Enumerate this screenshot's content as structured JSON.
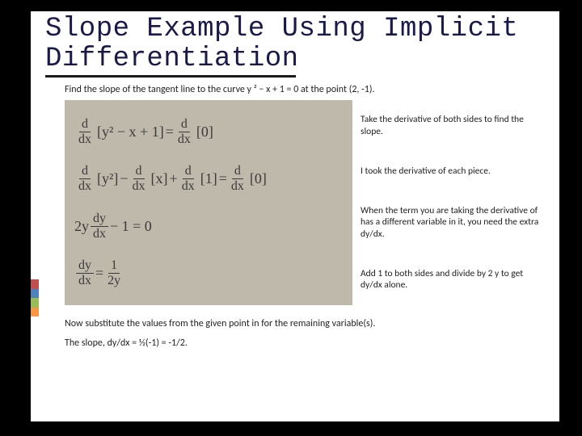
{
  "title_line1": "Slope Example Using Implicit",
  "title_line2": "Differentiation",
  "problem": "Find the slope of the tangent line to the curve y ² − x + 1 = 0 at the point (2, -1).",
  "equations": {
    "eq1_lhs_op": "d",
    "eq1_lhs_var": "dx",
    "eq1_lhs_body": "[y² − x + 1]",
    "eq1_eq": " = ",
    "eq1_rhs_op": "d",
    "eq1_rhs_var": "dx",
    "eq1_rhs_body": "[0]",
    "eq2_a_op": "d",
    "eq2_a_var": "dx",
    "eq2_a_body": "[y²]",
    "eq2_minus": " − ",
    "eq2_b_op": "d",
    "eq2_b_var": "dx",
    "eq2_b_body": "[x]",
    "eq2_plus": " + ",
    "eq2_c_op": "d",
    "eq2_c_var": "dx",
    "eq2_c_body": "[1]",
    "eq2_eq": " = ",
    "eq2_r_op": "d",
    "eq2_r_var": "dx",
    "eq2_r_body": "[0]",
    "eq3_coef": "2y",
    "eq3_num": "dy",
    "eq3_den": "dx",
    "eq3_tail": " − 1 = 0",
    "eq4_num": "dy",
    "eq4_den": "dx",
    "eq4_eq": " = ",
    "eq4_rnum": "1",
    "eq4_rden": "2y"
  },
  "annotations": {
    "a1": "Take the derivative of both sides to find the slope.",
    "a2": "I took the derivative of each piece.",
    "a3": "When the term you are taking the derivative of has a different variable in it, you need the extra dy/dx.",
    "a4": "Add 1 to both sides and divide by 2 y to get dy/dx alone."
  },
  "footer1": "Now substitute the values from the given point in for the remaining variable(s).",
  "footer2": "The slope, dy/dx = ½(-1) = -1/2.",
  "colors": {
    "slide_bg": "#000000",
    "content_bg": "#ffffff",
    "title_color": "#1a1a4a",
    "math_bg": "#bfb9ac",
    "accent1": "#c0504d",
    "accent2": "#4f81bd",
    "accent3": "#9bbb59",
    "accent4": "#f79646"
  }
}
